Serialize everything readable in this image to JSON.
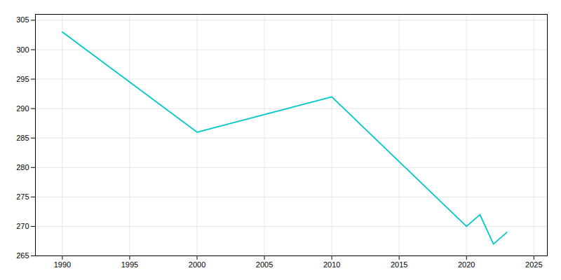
{
  "chart_data": {
    "type": "line",
    "x": [
      1990,
      2000,
      2010,
      2020,
      2021,
      2022,
      2023
    ],
    "values": [
      303,
      286,
      292,
      270,
      272,
      267,
      269
    ],
    "color": "#00C8C8",
    "xlim": [
      1988,
      2026
    ],
    "ylim": [
      265,
      306
    ],
    "xticks": [
      1990,
      1995,
      2000,
      2005,
      2010,
      2015,
      2020,
      2025
    ],
    "yticks": [
      265,
      270,
      275,
      280,
      285,
      290,
      295,
      300,
      305
    ],
    "grid": true
  }
}
